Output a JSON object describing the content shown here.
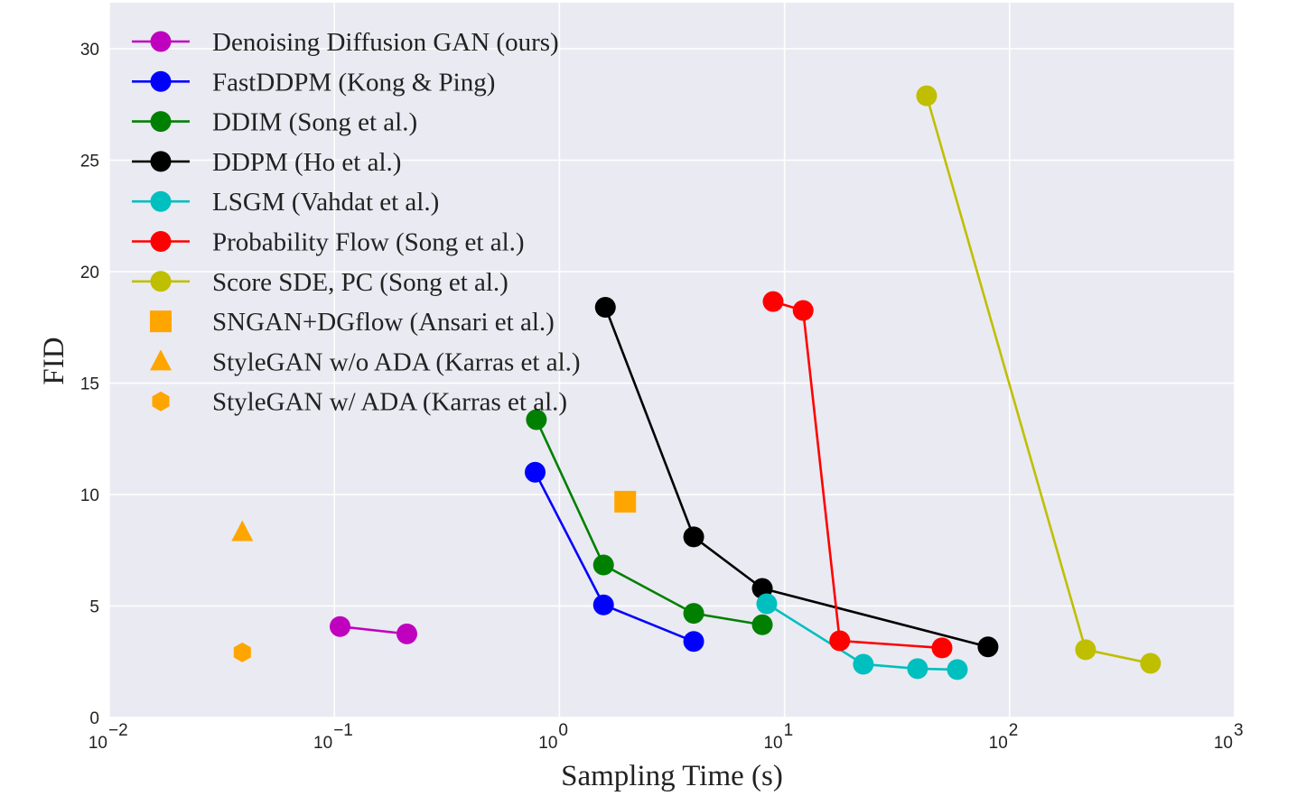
{
  "chart_data": {
    "type": "scatter",
    "title": "",
    "xlabel": "Sampling Time (s)",
    "ylabel": "FID",
    "xscale": "log",
    "xlim": [
      0.01,
      1000
    ],
    "ylim": [
      0,
      32
    ],
    "xticks": [
      {
        "value": 0.01,
        "base": "10",
        "exp": "−2"
      },
      {
        "value": 0.1,
        "base": "10",
        "exp": "−1"
      },
      {
        "value": 1,
        "base": "10",
        "exp": "0"
      },
      {
        "value": 10,
        "base": "10",
        "exp": "1"
      },
      {
        "value": 100,
        "base": "10",
        "exp": "2"
      },
      {
        "value": 1000,
        "base": "10",
        "exp": "3"
      }
    ],
    "yticks": [
      "0",
      "5",
      "10",
      "15",
      "20",
      "25",
      "30"
    ],
    "grid": true,
    "legend_position": "top-left",
    "background": "#eaeaf2",
    "series": [
      {
        "name": "Denoising Diffusion GAN (ours)",
        "color": "#bf00bf",
        "marker": "circle",
        "line": true,
        "x": [
          0.106,
          0.21
        ],
        "y": [
          4.08,
          3.75
        ]
      },
      {
        "name": "FastDDPM (Kong & Ping)",
        "color": "#0000ff",
        "marker": "circle",
        "line": true,
        "x": [
          0.78,
          1.57,
          3.95
        ],
        "y": [
          11.0,
          5.05,
          3.41
        ]
      },
      {
        "name": "DDIM (Song et al.)",
        "color": "#008000",
        "marker": "circle",
        "line": true,
        "x": [
          0.79,
          1.57,
          3.95,
          7.97
        ],
        "y": [
          13.36,
          6.84,
          4.67,
          4.16
        ]
      },
      {
        "name": "DDPM (Ho et al.)",
        "color": "#000000",
        "marker": "circle",
        "line": true,
        "x": [
          1.6,
          3.95,
          7.97,
          80.2
        ],
        "y": [
          18.4,
          8.1,
          5.79,
          3.17
        ]
      },
      {
        "name": "LSGM (Vahdat et al.)",
        "color": "#00bfbf",
        "marker": "circle",
        "line": true,
        "x": [
          8.34,
          22.4,
          39,
          58.6
        ],
        "y": [
          5.1,
          2.39,
          2.19,
          2.15
        ]
      },
      {
        "name": "Probability Flow (Song et al.)",
        "color": "#ff0000",
        "marker": "circle",
        "line": true,
        "x": [
          8.9,
          12.1,
          17.6,
          50.1
        ],
        "y": [
          18.66,
          18.26,
          3.44,
          3.12
        ]
      },
      {
        "name": "Score SDE, PC (Song et al.)",
        "color": "#bfbf00",
        "marker": "circle",
        "line": true,
        "x": [
          42.8,
          217.6,
          423
        ],
        "y": [
          27.89,
          3.04,
          2.43
        ]
      },
      {
        "name": "SNGAN+DGflow (Ansari et al.)",
        "color": "#ffa500",
        "marker": "square",
        "line": false,
        "x": [
          1.96
        ],
        "y": [
          9.68
        ]
      },
      {
        "name": "StyleGAN w/o ADA (Karras et al.)",
        "color": "#ffa500",
        "marker": "triangle",
        "line": false,
        "x": [
          0.039
        ],
        "y": [
          8.32
        ]
      },
      {
        "name": "StyleGAN w/ ADA (Karras et al.)",
        "color": "#ffa500",
        "marker": "hexagon",
        "line": false,
        "x": [
          0.039
        ],
        "y": [
          2.92
        ]
      }
    ]
  }
}
